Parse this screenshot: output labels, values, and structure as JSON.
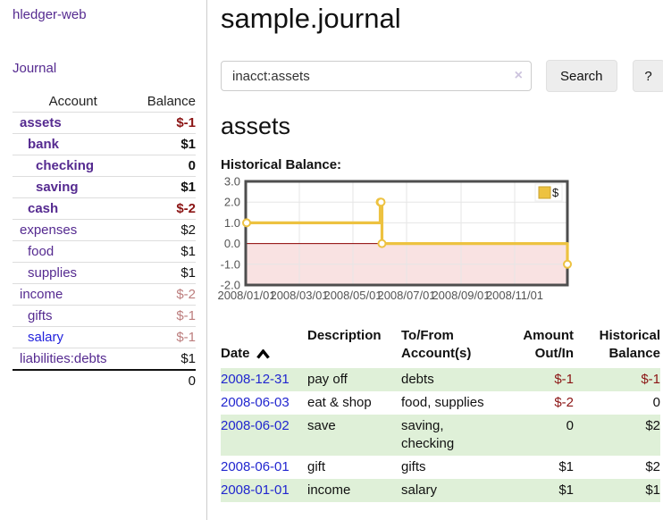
{
  "app": {
    "brand": "hledger-web"
  },
  "sidebar": {
    "nav": {
      "journal": "Journal"
    },
    "accounts_table": {
      "headers": {
        "account": "Account",
        "balance": "Balance"
      },
      "rows": [
        {
          "name": "assets",
          "balance": "$-1"
        },
        {
          "name": "bank",
          "balance": "$1"
        },
        {
          "name": "checking",
          "balance": "0"
        },
        {
          "name": "saving",
          "balance": "$1"
        },
        {
          "name": "cash",
          "balance": "$-2"
        },
        {
          "name": "expenses",
          "balance": "$2"
        },
        {
          "name": "food",
          "balance": "$1"
        },
        {
          "name": "supplies",
          "balance": "$1"
        },
        {
          "name": "income",
          "balance": "$-2"
        },
        {
          "name": "gifts",
          "balance": "$-1"
        },
        {
          "name": "salary",
          "balance": "$-1"
        },
        {
          "name": "liabilities:debts",
          "balance": "$1"
        }
      ],
      "total": "0"
    }
  },
  "header": {
    "title": "sample.journal"
  },
  "search": {
    "value": "inacct:assets",
    "clear_label": "×",
    "button_label": "Search",
    "help_label": "?"
  },
  "account_page": {
    "heading": "assets",
    "chart_label": "Historical Balance:"
  },
  "chart_data": {
    "type": "line",
    "title": "Historical Balance:",
    "series": [
      {
        "name": "$",
        "color": "#edc240",
        "marker_fill": "#ffffff",
        "style": "step-after",
        "points": [
          [
            "2008-01-01",
            1
          ],
          [
            "2008-06-01",
            2
          ],
          [
            "2008-06-02",
            2
          ],
          [
            "2008-06-03",
            0
          ],
          [
            "2008-12-31",
            -1
          ]
        ]
      }
    ],
    "x_ticks": [
      "2008/01/01",
      "2008/03/01",
      "2008/05/01",
      "2008/07/01",
      "2008/09/01",
      "2008/11/01"
    ],
    "y_ticks": [
      "3.0",
      "2.0",
      "1.0",
      "0.0",
      "-1.0",
      "-2.0"
    ],
    "ylim": [
      -2,
      3
    ],
    "xlim": [
      "2008-01-01",
      "2008-12-31"
    ],
    "grid": true,
    "legend_position": "top-right",
    "grid_color": "#e6e6e6",
    "border_color": "#4e4e4e",
    "negative_region_fill": "#f9e2e2",
    "zero_line_color": "#8b0000",
    "tick_label_color": "#545454"
  },
  "register": {
    "headers": {
      "date": "Date",
      "description": "Description",
      "account": "To/From\nAccount(s)",
      "amount": "Amount\nOut/In",
      "balance": "Historical\nBalance"
    },
    "rows": [
      {
        "date": "2008-12-31",
        "description": "pay off",
        "account": "debts",
        "amount": "$-1",
        "balance": "$-1"
      },
      {
        "date": "2008-06-03",
        "description": "eat & shop",
        "account": "food, supplies",
        "amount": "$-2",
        "balance": "0"
      },
      {
        "date": "2008-06-02",
        "description": "save",
        "account": "saving,\nchecking",
        "amount": "0",
        "balance": "$2"
      },
      {
        "date": "2008-06-01",
        "description": "gift",
        "account": "gifts",
        "amount": "$1",
        "balance": "$2"
      },
      {
        "date": "2008-01-01",
        "description": "income",
        "account": "salary",
        "amount": "$1",
        "balance": "$1"
      }
    ]
  },
  "colors": {
    "link_purple": "#552a90",
    "link_blue": "#2222dd",
    "negative_strong": "#8b1414",
    "negative_soft": "#bc7d7d",
    "stripe_green": "#dff0d8"
  }
}
